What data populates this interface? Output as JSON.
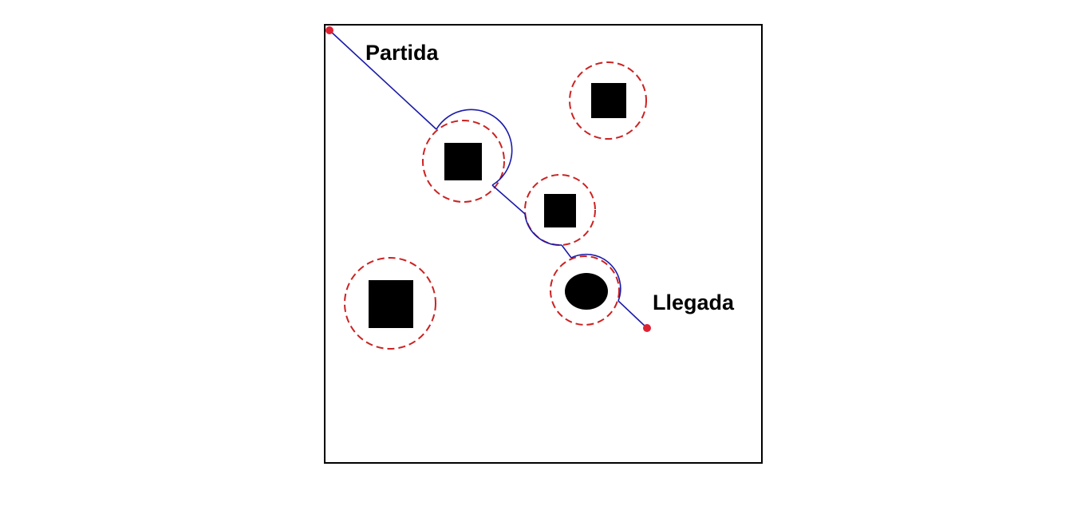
{
  "labels": {
    "start": "Partida",
    "goal": "Llegada"
  },
  "colors": {
    "border": "#000000",
    "path": "#1a1aa8",
    "safety_margin": "#cc2222",
    "endpoint": "#dd2233",
    "obstacle": "#000000"
  }
}
